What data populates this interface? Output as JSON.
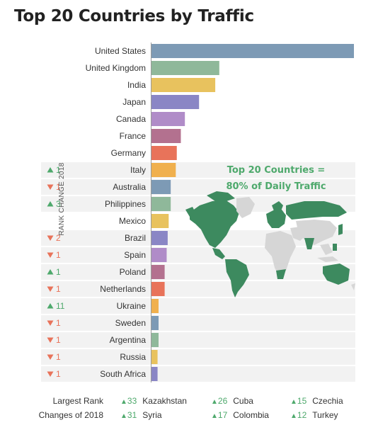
{
  "header": {
    "title": "Top 20 Countries by Traffic"
  },
  "rank_axis_label": "RANK CHANGE 2018",
  "map_caption": {
    "line1": "Top 20 Countries =",
    "line2": "80% of Daily Traffic"
  },
  "colors": {
    "up": "#4ea96c",
    "down": "#e8735a",
    "row_shade": "#f2f2f2",
    "map_highlight": "#3d8a5f",
    "map_other": "#d6d6d6"
  },
  "chart_data": {
    "type": "bar",
    "orientation": "horizontal",
    "title": "Top 20 Countries by Traffic",
    "categories": [
      "United States",
      "United Kingdom",
      "India",
      "Japan",
      "Canada",
      "France",
      "Germany",
      "Italy",
      "Australia",
      "Philippines",
      "Mexico",
      "Brazil",
      "Spain",
      "Poland",
      "Netherlands",
      "Ukraine",
      "Sweden",
      "Argentina",
      "Russia",
      "South Africa"
    ],
    "values": [
      100,
      33.5,
      31.5,
      23.5,
      16.5,
      14.5,
      12.5,
      12,
      9.5,
      9.5,
      8.5,
      8,
      7.5,
      6.5,
      6.5,
      3.5,
      3.5,
      3.5,
      3,
      3
    ],
    "xlim": [
      0,
      100
    ],
    "grid": false,
    "bar_colors": [
      "#7d9ab5",
      "#8fb89a",
      "#e8c25e",
      "#8a86c5",
      "#b08cc8",
      "#b3718f",
      "#e8735a",
      "#f0b04e",
      "#7d9ab5",
      "#8fb89a",
      "#e8c25e",
      "#8a86c5",
      "#b08cc8",
      "#b3718f",
      "#e8735a",
      "#f0b04e",
      "#7d9ab5",
      "#8fb89a",
      "#e8c25e",
      "#8a86c5"
    ],
    "rank_change": [
      {
        "dir": "",
        "value": ""
      },
      {
        "dir": "",
        "value": ""
      },
      {
        "dir": "",
        "value": ""
      },
      {
        "dir": "",
        "value": ""
      },
      {
        "dir": "",
        "value": ""
      },
      {
        "dir": "",
        "value": ""
      },
      {
        "dir": "",
        "value": ""
      },
      {
        "dir": "up",
        "value": "1"
      },
      {
        "dir": "down",
        "value": "1"
      },
      {
        "dir": "up",
        "value": "3"
      },
      {
        "dir": "",
        "value": ""
      },
      {
        "dir": "down",
        "value": "2"
      },
      {
        "dir": "down",
        "value": "1"
      },
      {
        "dir": "up",
        "value": "1"
      },
      {
        "dir": "down",
        "value": "1"
      },
      {
        "dir": "up",
        "value": "11"
      },
      {
        "dir": "down",
        "value": "1"
      },
      {
        "dir": "down",
        "value": "1"
      },
      {
        "dir": "down",
        "value": "1"
      },
      {
        "dir": "down",
        "value": "1"
      }
    ]
  },
  "footer": {
    "label_line1": "Largest Rank",
    "label_line2": "Changes of 2018",
    "changes": [
      {
        "value": "33",
        "country": "Kazakhstan"
      },
      {
        "value": "26",
        "country": "Cuba"
      },
      {
        "value": "15",
        "country": "Czechia"
      },
      {
        "value": "31",
        "country": "Syria"
      },
      {
        "value": "17",
        "country": "Colombia"
      },
      {
        "value": "12",
        "country": "Turkey"
      }
    ]
  }
}
